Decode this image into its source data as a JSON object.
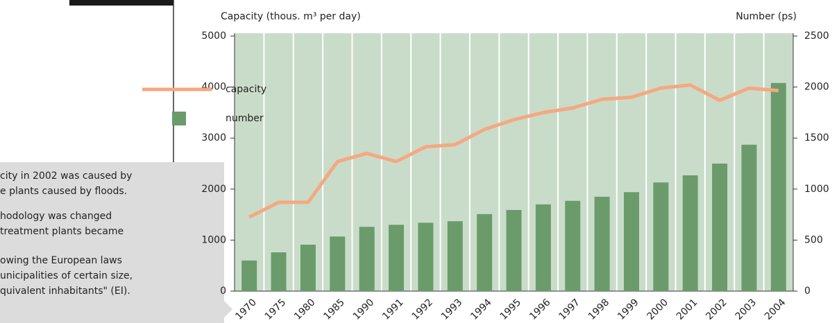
{
  "chart_data": {
    "type": "bar_line",
    "y_label": "Capacity (thous. m³ per day)",
    "y2_label": "Number (ps)",
    "categories": [
      "1970",
      "1975",
      "1980",
      "1985",
      "1990",
      "1991",
      "1992",
      "1993",
      "1994",
      "1995",
      "1996",
      "1997",
      "1998",
      "1999",
      "2000",
      "2001",
      "2002",
      "2003",
      "2004"
    ],
    "series": [
      {
        "name": "capacity",
        "kind": "line",
        "color": "#f5a882",
        "axis": "y",
        "values": [
          1450,
          1740,
          1740,
          2540,
          2700,
          2540,
          2830,
          2870,
          3170,
          3360,
          3500,
          3590,
          3760,
          3800,
          3980,
          4040,
          3740,
          3980,
          3930
        ]
      },
      {
        "name": "number",
        "kind": "bar",
        "color": "#6b9b6b",
        "axis": "y2",
        "values": [
          300,
          380,
          455,
          535,
          630,
          650,
          670,
          685,
          755,
          795,
          850,
          885,
          925,
          970,
          1065,
          1135,
          1250,
          1435,
          2040
        ]
      }
    ],
    "ylim": [
      0,
      5000
    ],
    "yticks": [
      0,
      1000,
      2000,
      3000,
      4000,
      5000
    ],
    "y2lim": [
      0,
      2500
    ],
    "y2ticks": [
      0,
      500,
      1000,
      1500,
      2000,
      2500
    ],
    "plot_background": "#c9dcc9",
    "annotations": [
      "city in 2002 was caused by",
      "e plants caused by floods.",
      "hodology was changed",
      "treatment plants became",
      "owing the European laws",
      "unicipalities of certain size,",
      "quivalent inhabitants\" (EI)."
    ]
  }
}
